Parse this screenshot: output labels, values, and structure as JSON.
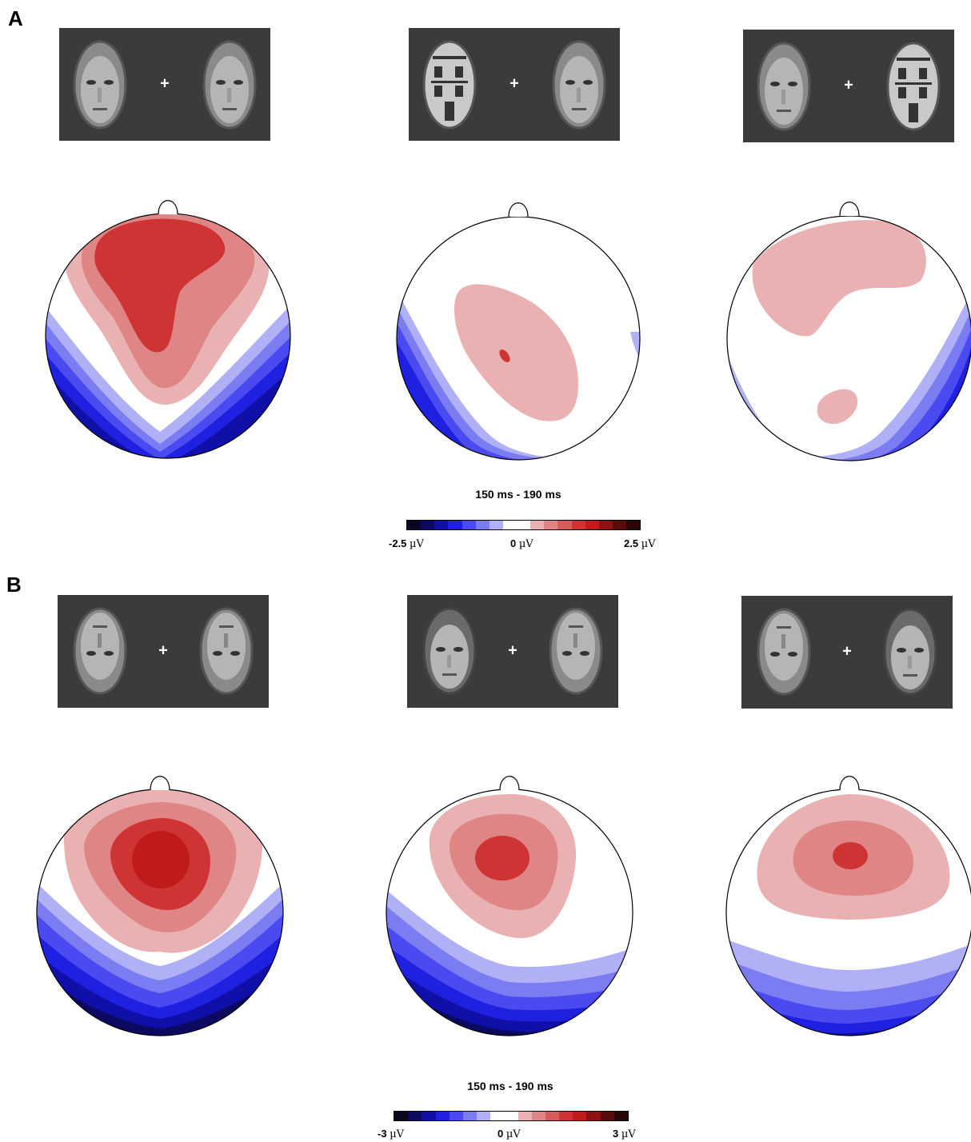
{
  "panels": {
    "a": {
      "letter": "A",
      "time_window": "150 ms - 190 ms",
      "scale": {
        "min_value": "-2.5",
        "mid_value": "0",
        "max_value": "2.5",
        "unit": "µV"
      },
      "stimuli": [
        {
          "left": "face",
          "fixation": "+",
          "right": "face"
        },
        {
          "left": "house",
          "fixation": "+",
          "right": "face"
        },
        {
          "left": "face",
          "fixation": "+",
          "right": "house"
        }
      ]
    },
    "b": {
      "letter": "B",
      "time_window": "150 ms - 190 ms",
      "scale": {
        "min_value": "-3",
        "mid_value": "0",
        "max_value": "3",
        "unit": "µV"
      },
      "stimuli": [
        {
          "left": "inverted face",
          "fixation": "+",
          "right": "inverted face"
        },
        {
          "left": "upright face",
          "fixation": "+",
          "right": "inverted face"
        },
        {
          "left": "inverted face",
          "fixation": "+",
          "right": "upright face"
        }
      ]
    }
  },
  "colormap": [
    "#0a0520",
    "#0b0a60",
    "#1010a8",
    "#2020e0",
    "#4a4af0",
    "#7c7cf2",
    "#b0b0f6",
    "#ffffff",
    "#ffffff",
    "#e9b1b1",
    "#e08585",
    "#d85b5b",
    "#cf3434",
    "#c01b1b",
    "#8e1212",
    "#5a0b0b",
    "#2a0606"
  ]
}
